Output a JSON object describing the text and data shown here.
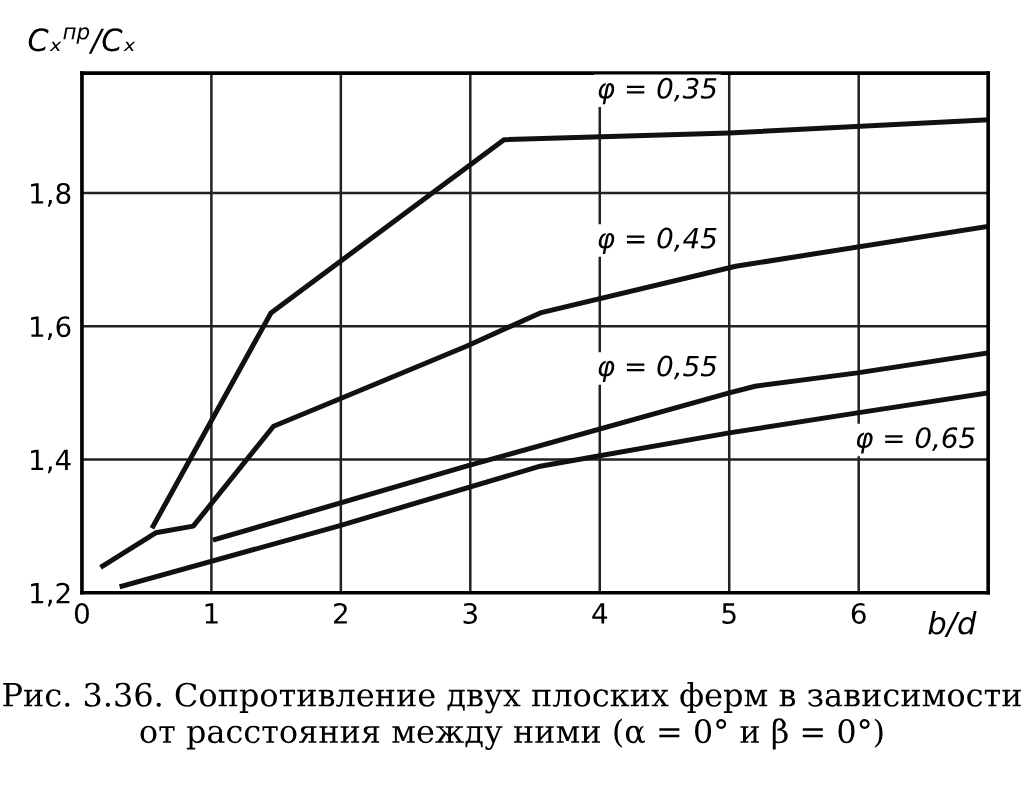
{
  "chart_data": {
    "type": "line",
    "xlabel": "b/d",
    "ylabel": "Cₓ$^{пр}$/Cₓ",
    "xlim": [
      0,
      7
    ],
    "ylim": [
      1.2,
      1.98
    ],
    "xticks": [
      0,
      1,
      2,
      3,
      4,
      5,
      6
    ],
    "yticks": [
      {
        "value": 1.2,
        "label": "1,2"
      },
      {
        "value": 1.4,
        "label": "1,4"
      },
      {
        "value": 1.6,
        "label": "1,6"
      },
      {
        "value": 1.8,
        "label": "1,8"
      }
    ],
    "grid": true,
    "marker": "none",
    "line_style": "solid",
    "series": [
      {
        "name": "φ = 0,35",
        "color": "#111111",
        "x": [
          0.55,
          1.46,
          3.26,
          5.0,
          7.0
        ],
        "values": [
          1.3,
          1.62,
          1.88,
          1.89,
          1.91
        ]
      },
      {
        "name": "φ = 0,45",
        "color": "#111111",
        "x": [
          0.16,
          0.57,
          0.86,
          1.48,
          1.98,
          2.97,
          3.54,
          5.05,
          7.0
        ],
        "values": [
          1.24,
          1.29,
          1.3,
          1.45,
          1.49,
          1.57,
          1.62,
          1.69,
          1.75
        ]
      },
      {
        "name": "φ = 0,55",
        "color": "#111111",
        "x": [
          1.03,
          2.97,
          5.0,
          5.2,
          5.99,
          7.0
        ],
        "values": [
          1.28,
          1.39,
          1.5,
          1.51,
          1.53,
          1.56
        ]
      },
      {
        "name": "φ = 0,65",
        "color": "#111111",
        "x": [
          0.31,
          1.98,
          3.54,
          5.0,
          5.99,
          7.0
        ],
        "values": [
          1.21,
          1.3,
          1.39,
          1.44,
          1.47,
          1.5
        ]
      }
    ],
    "annotations": [
      "Рис. 3.36. Сопротивление двух плоских ферм в зависимости от расстояния между ними (α = 0° и β = 0°)"
    ]
  }
}
